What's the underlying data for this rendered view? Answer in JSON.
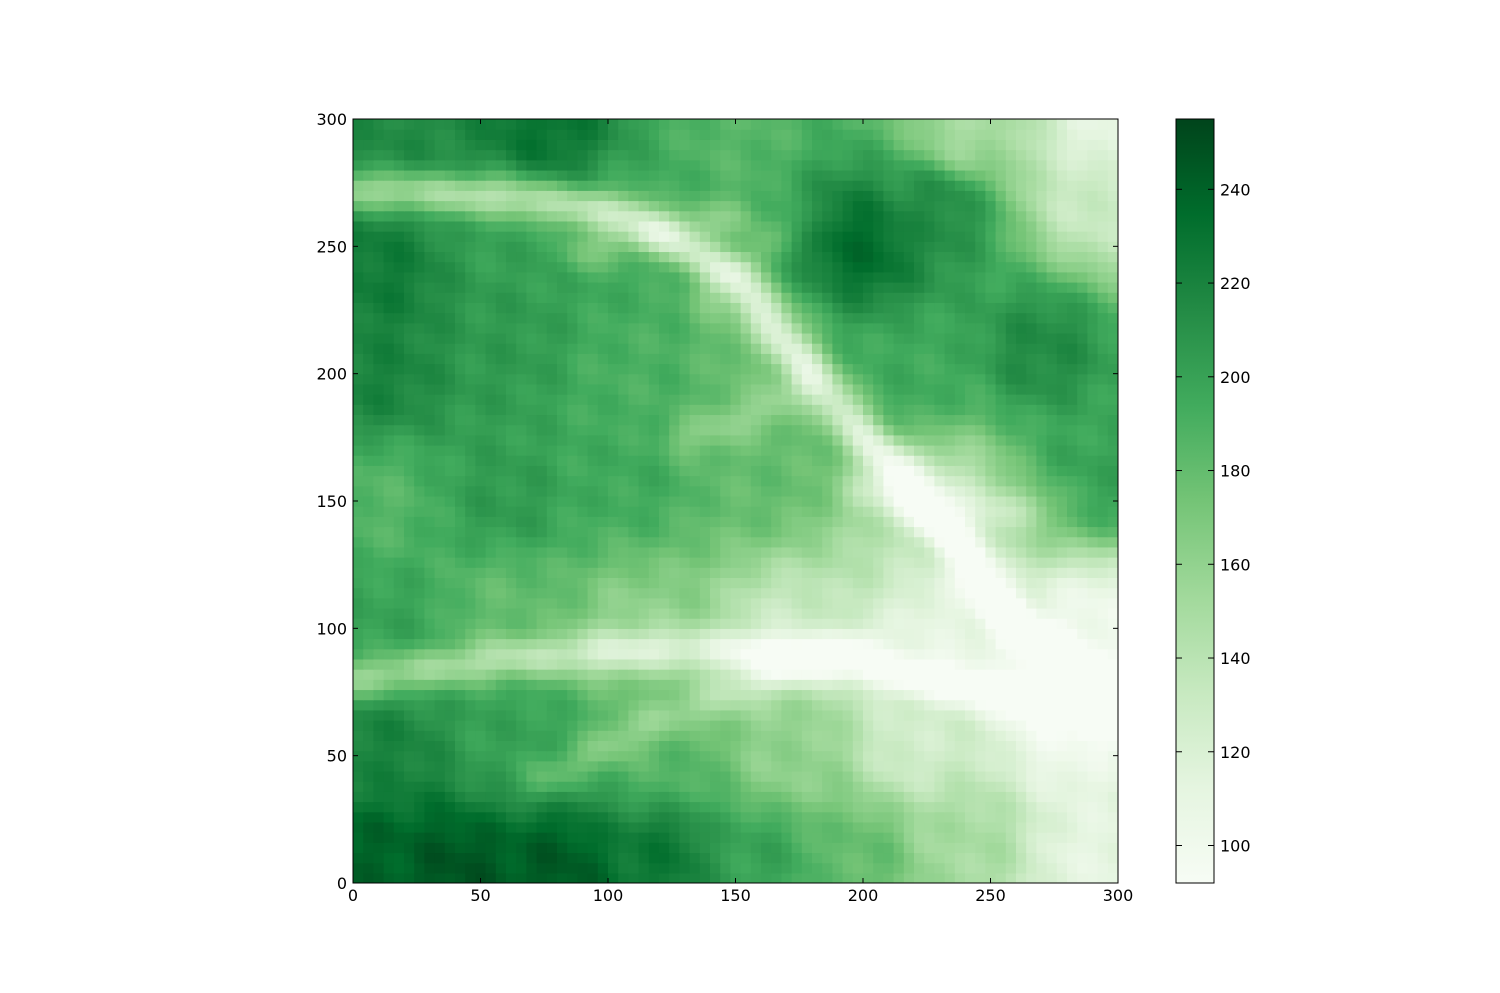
{
  "chart_data": {
    "type": "heatmap",
    "title": "",
    "xlabel": "",
    "ylabel": "",
    "xlim": [
      0,
      300
    ],
    "ylim": [
      0,
      300
    ],
    "x_ticks": [
      0,
      50,
      100,
      150,
      200,
      250,
      300
    ],
    "y_ticks": [
      0,
      50,
      100,
      150,
      200,
      250,
      300
    ],
    "grid": false,
    "colormap": "Greens",
    "colormap_colors": [
      "#f7fcf5",
      "#e5f5e0",
      "#c7e9c0",
      "#a1d99b",
      "#74c476",
      "#41ab5d",
      "#238b45",
      "#006d2c",
      "#00441b"
    ],
    "colorbar": {
      "vmin": 92,
      "vmax": 255,
      "ticks": [
        100,
        120,
        140,
        160,
        180,
        200,
        220,
        240
      ],
      "location": "right"
    },
    "terrain": {
      "description_values": "approximate elevation samples (x, y, value) in data units",
      "base_samples": [
        [
          10,
          10,
          240
        ],
        [
          40,
          5,
          248
        ],
        [
          80,
          5,
          245
        ],
        [
          120,
          10,
          228
        ],
        [
          160,
          10,
          200
        ],
        [
          200,
          10,
          180
        ],
        [
          240,
          15,
          150
        ],
        [
          290,
          10,
          110
        ],
        [
          10,
          50,
          220
        ],
        [
          60,
          55,
          200
        ],
        [
          120,
          50,
          185
        ],
        [
          170,
          50,
          160
        ],
        [
          220,
          55,
          125
        ],
        [
          280,
          60,
          100
        ],
        [
          10,
          100,
          200
        ],
        [
          60,
          110,
          180
        ],
        [
          110,
          100,
          160
        ],
        [
          170,
          100,
          130
        ],
        [
          230,
          100,
          110
        ],
        [
          290,
          100,
          100
        ],
        [
          10,
          150,
          185
        ],
        [
          60,
          150,
          205
        ],
        [
          110,
          160,
          195
        ],
        [
          160,
          160,
          180
        ],
        [
          230,
          150,
          135
        ],
        [
          290,
          160,
          200
        ],
        [
          10,
          200,
          220
        ],
        [
          60,
          210,
          205
        ],
        [
          110,
          200,
          190
        ],
        [
          160,
          210,
          175
        ],
        [
          220,
          200,
          195
        ],
        [
          270,
          210,
          215
        ],
        [
          10,
          240,
          225
        ],
        [
          60,
          255,
          200
        ],
        [
          110,
          260,
          195
        ],
        [
          200,
          250,
          235
        ],
        [
          230,
          265,
          215
        ],
        [
          290,
          270,
          130
        ],
        [
          20,
          295,
          215
        ],
        [
          75,
          298,
          230
        ],
        [
          150,
          295,
          185
        ],
        [
          240,
          295,
          150
        ],
        [
          295,
          295,
          110
        ]
      ],
      "valleys": [
        {
          "points": [
            [
              0,
              272
            ],
            [
              60,
              270
            ],
            [
              110,
              262
            ],
            [
              150,
              238
            ],
            [
              180,
              200
            ],
            [
              210,
              165
            ],
            [
              240,
              130
            ],
            [
              260,
              100
            ],
            [
              300,
              70
            ]
          ],
          "depth": 60
        },
        {
          "points": [
            [
              0,
              80
            ],
            [
              60,
              88
            ],
            [
              120,
              92
            ],
            [
              170,
              90
            ],
            [
              230,
              80
            ],
            [
              300,
              65
            ]
          ],
          "depth": 45
        },
        {
          "points": [
            [
              75,
              40
            ],
            [
              110,
              60
            ],
            [
              160,
              80
            ],
            [
              200,
              95
            ]
          ],
          "depth": 25
        },
        {
          "points": [
            [
              90,
              248
            ],
            [
              130,
              258
            ],
            [
              150,
              262
            ]
          ],
          "depth": 25
        },
        {
          "points": [
            [
              130,
              175
            ],
            [
              160,
              185
            ],
            [
              175,
              195
            ]
          ],
          "depth": 20
        },
        {
          "points": [
            [
              200,
              155
            ],
            [
              225,
              150
            ],
            [
              250,
              145
            ],
            [
              275,
              150
            ]
          ],
          "depth": 20
        },
        {
          "points": [
            [
              140,
              230
            ],
            [
              160,
              250
            ],
            [
              175,
              260
            ]
          ],
          "depth": 18
        }
      ]
    }
  }
}
